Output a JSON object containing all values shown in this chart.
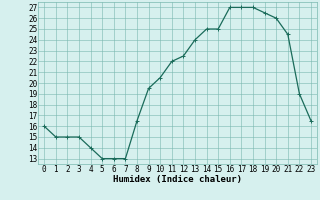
{
  "x": [
    0,
    1,
    2,
    3,
    4,
    5,
    6,
    7,
    8,
    9,
    10,
    11,
    12,
    13,
    14,
    15,
    16,
    17,
    18,
    19,
    20,
    21,
    22,
    23
  ],
  "y": [
    16,
    15,
    15,
    15,
    14,
    13,
    13,
    13,
    16.5,
    19.5,
    20.5,
    22,
    22.5,
    24,
    25,
    25,
    27,
    27,
    27,
    26.5,
    26,
    24.5,
    19,
    16.5
  ],
  "line_color": "#1a6b5a",
  "marker": "+",
  "marker_size": 3,
  "bg_color": "#d6f0ee",
  "grid_color": "#7ab8b0",
  "xlabel": "Humidex (Indice chaleur)",
  "xlim": [
    -0.5,
    23.5
  ],
  "ylim": [
    12.5,
    27.5
  ],
  "yticks": [
    13,
    14,
    15,
    16,
    17,
    18,
    19,
    20,
    21,
    22,
    23,
    24,
    25,
    26,
    27
  ],
  "xticks": [
    0,
    1,
    2,
    3,
    4,
    5,
    6,
    7,
    8,
    9,
    10,
    11,
    12,
    13,
    14,
    15,
    16,
    17,
    18,
    19,
    20,
    21,
    22,
    23
  ],
  "tick_fontsize": 5.5,
  "label_fontsize": 6.5,
  "line_width": 0.9,
  "marker_edge_width": 0.7
}
